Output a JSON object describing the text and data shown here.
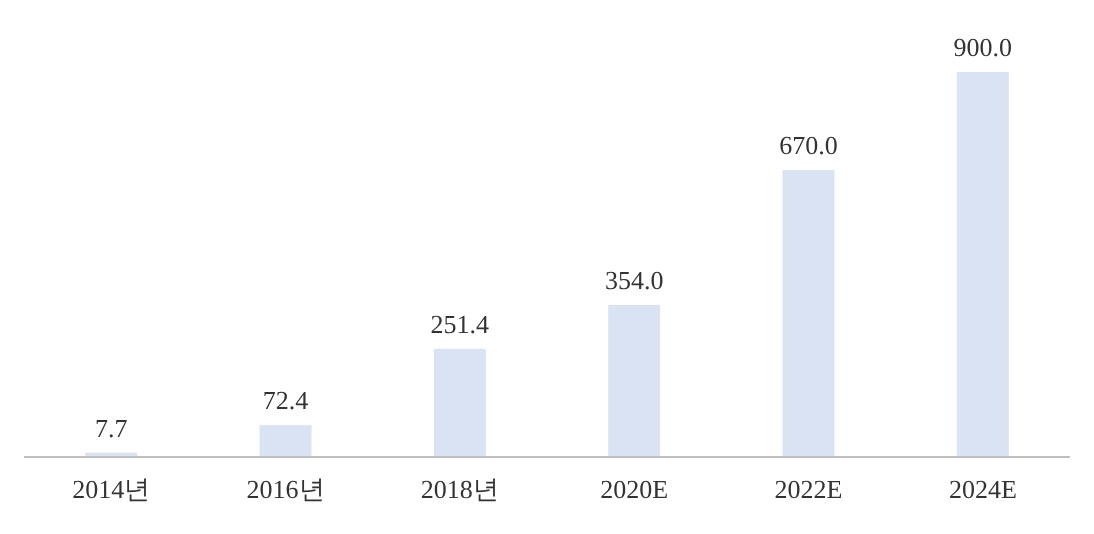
{
  "chart_data": {
    "type": "bar",
    "categories": [
      "2014년",
      "2016년",
      "2018년",
      "2020E",
      "2022E",
      "2024E"
    ],
    "values": [
      7.7,
      72.4,
      251.4,
      354.0,
      670.0,
      900.0
    ],
    "value_labels": [
      "7.7",
      "72.4",
      "251.4",
      "354.0",
      "670.0",
      "900.0"
    ],
    "color": "#dae3f3"
  }
}
